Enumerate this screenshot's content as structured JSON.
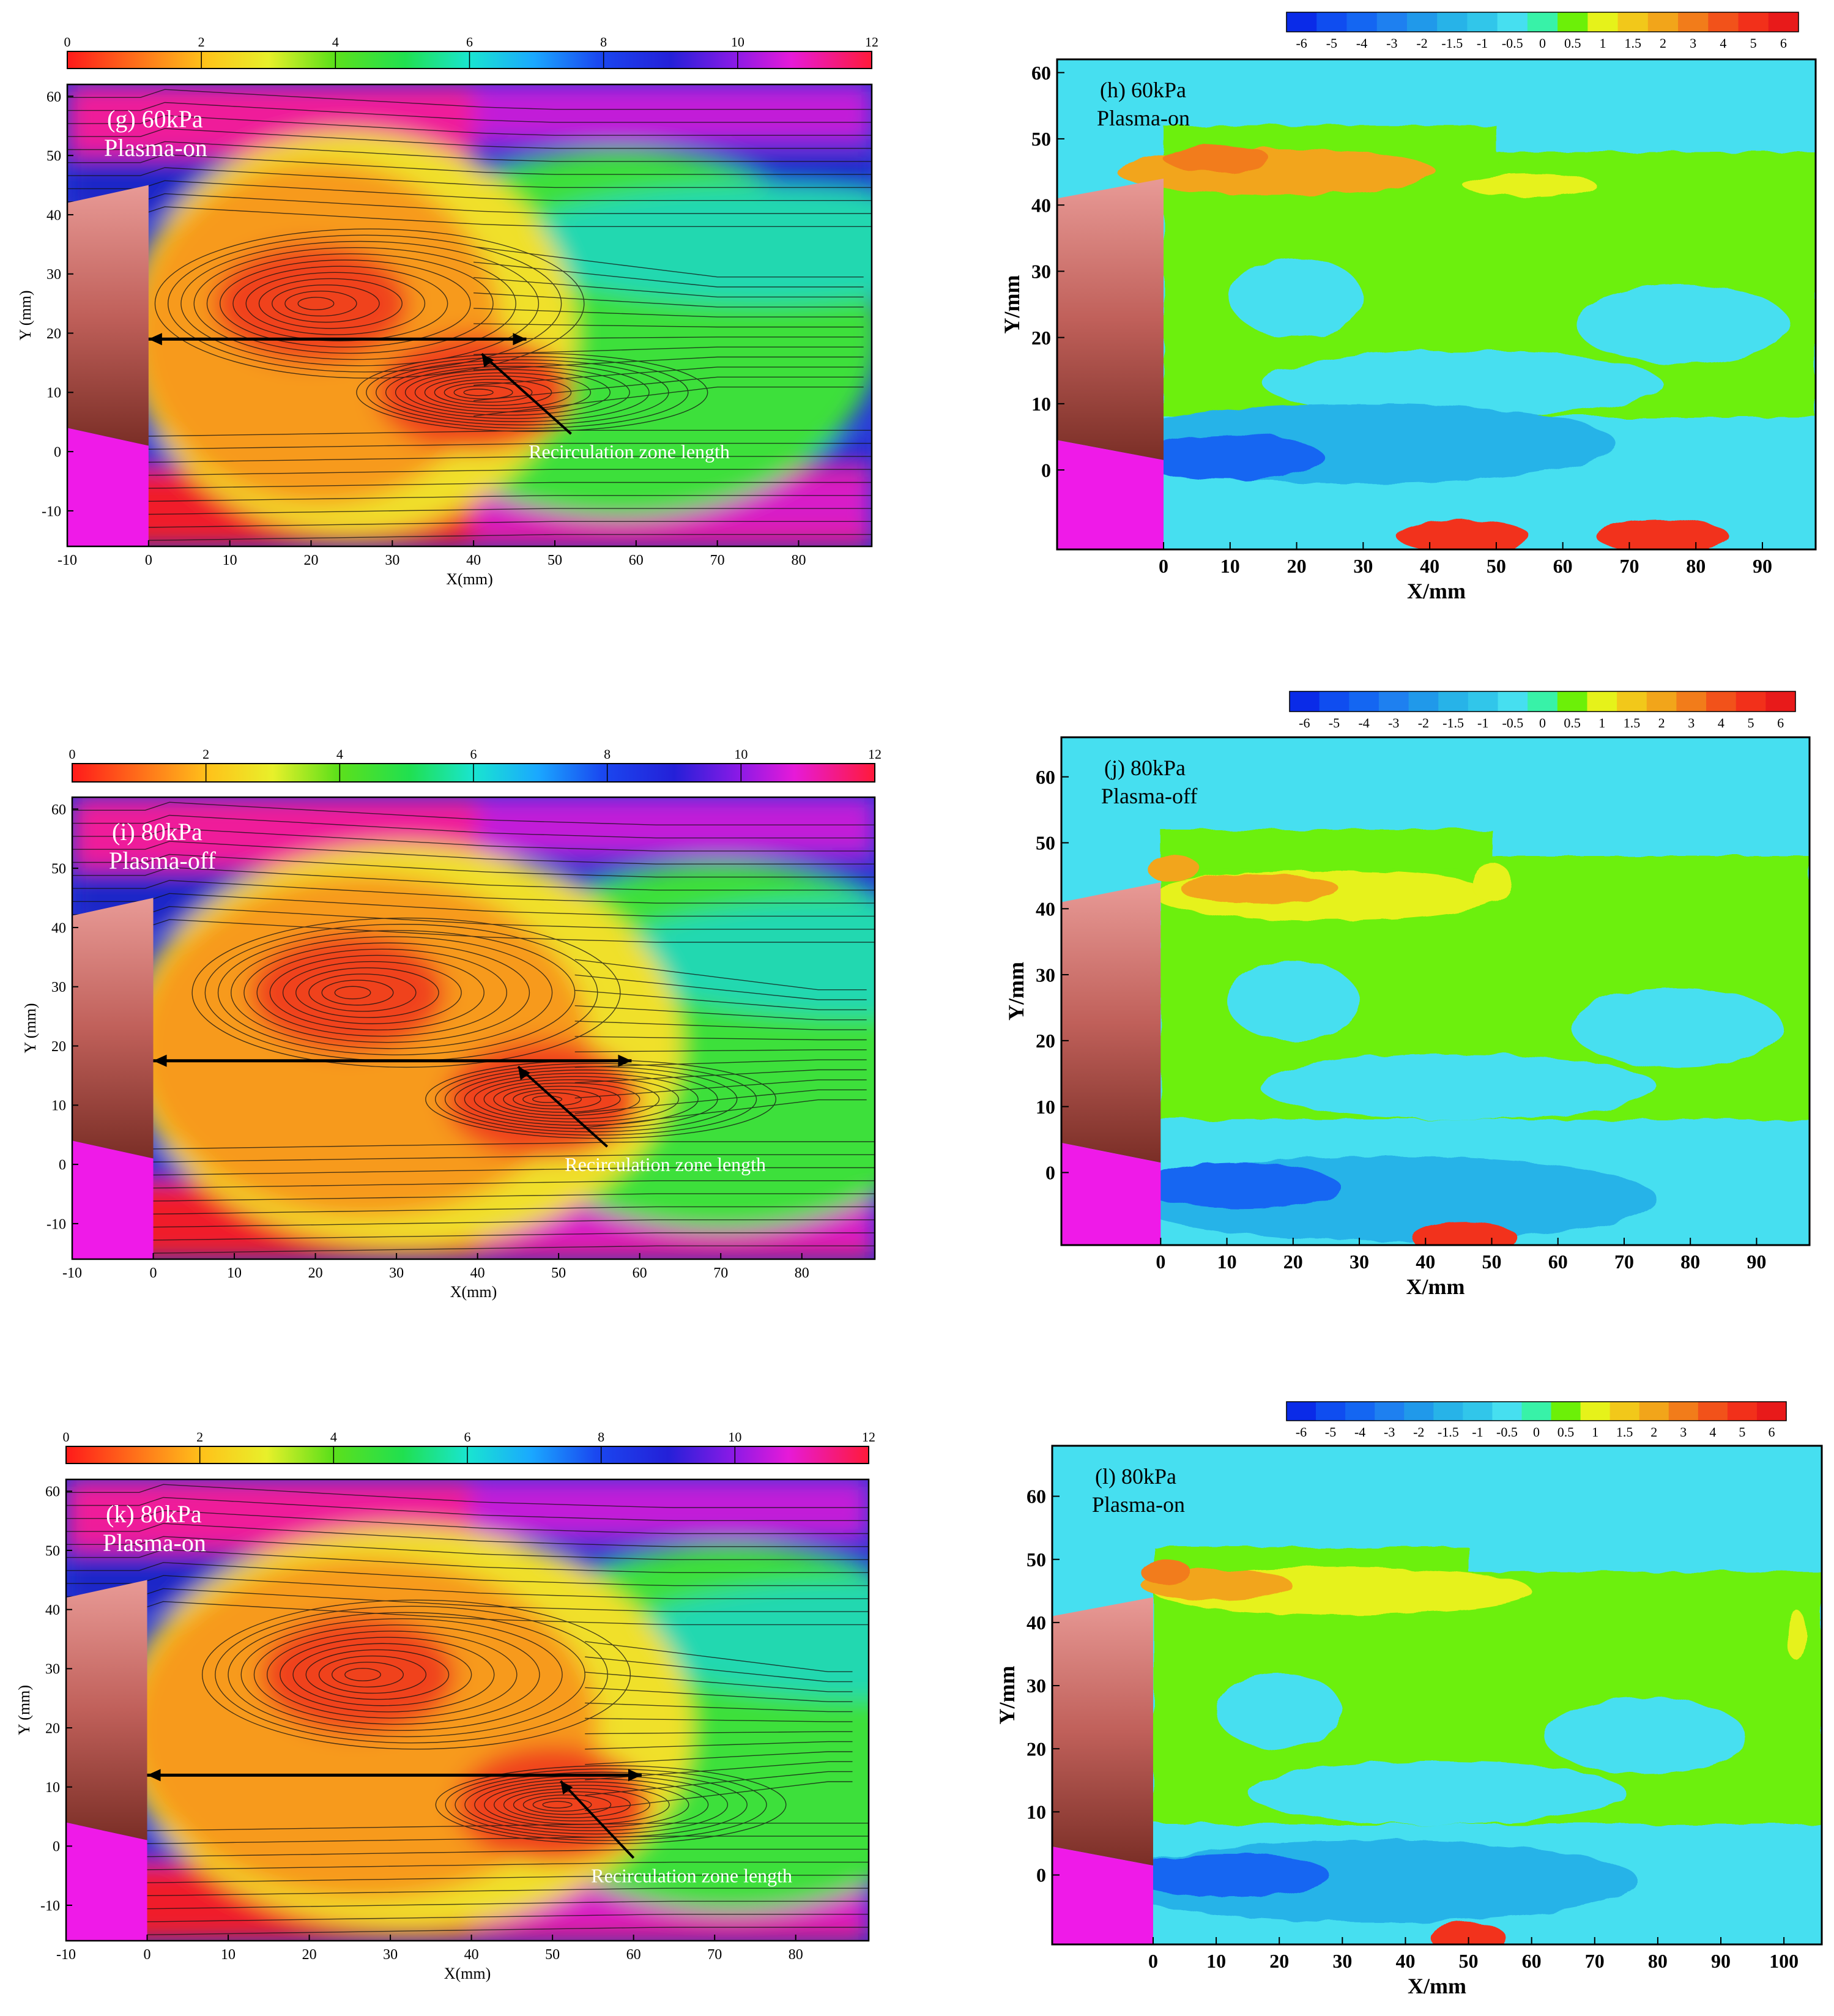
{
  "chart_data": [
    {
      "id": "g",
      "type": "heatmap",
      "variant": "velocity-streamline",
      "panel_label": "(g) 60kPa",
      "panel_sublabel": "Plasma-on",
      "xlabel": "X(mm)",
      "ylabel": "Y (mm)",
      "xlim": [
        -10,
        89
      ],
      "ylim": [
        -16,
        62
      ],
      "xticks": [
        "-10",
        "0",
        "10",
        "20",
        "30",
        "40",
        "50",
        "60",
        "70",
        "80"
      ],
      "yticks": [
        "-10",
        "0",
        "10",
        "20",
        "30",
        "40",
        "50",
        "60"
      ],
      "colorbar": {
        "ticks": [
          "0",
          "2",
          "4",
          "6",
          "8",
          "10",
          "12"
        ],
        "range": [
          0,
          12
        ],
        "placement": "top"
      },
      "arrow": {
        "x_start": 0,
        "x_end": 46.5,
        "y": 19
      },
      "annotation": {
        "text": "Recirculation zone length",
        "pointer_tip": [
          41,
          16.5
        ],
        "pointer_tail": [
          52,
          3
        ]
      },
      "vortices": [
        {
          "x": 20,
          "y": 25
        },
        {
          "x": 40,
          "y": 10
        }
      ],
      "recirculation_x": 50
    },
    {
      "id": "h",
      "type": "heatmap",
      "variant": "diverging",
      "panel_label": "(h) 60kPa",
      "panel_sublabel": "Plasma-on",
      "xlabel": "X/mm",
      "ylabel": "Y/mm",
      "xlim": [
        -16,
        98
      ],
      "ylim": [
        -12,
        62
      ],
      "xticks": [
        "0",
        "10",
        "20",
        "30",
        "40",
        "50",
        "60",
        "70",
        "80",
        "90"
      ],
      "yticks": [
        "0",
        "10",
        "20",
        "30",
        "40",
        "50",
        "60"
      ],
      "colorbar": {
        "ticks": [
          "-6",
          "-5",
          "-4",
          "-3",
          "-2",
          "-1.5",
          "-1",
          "-0.5",
          "0",
          "0.5",
          "1",
          "1.5",
          "2",
          "3",
          "4",
          "5",
          "6"
        ],
        "placement": "top-right"
      },
      "blobs": [
        {
          "x": 17,
          "y": 45,
          "rx": 24,
          "ry": 3.5,
          "level": 3
        },
        {
          "x": 8,
          "y": 47,
          "rx": 8,
          "ry": 2,
          "level": 4
        },
        {
          "x": 55,
          "y": 43,
          "rx": 10,
          "ry": 1.8,
          "level": 2
        },
        {
          "x": 30,
          "y": 4,
          "rx": 38,
          "ry": 6,
          "level": -2
        },
        {
          "x": 10,
          "y": 2,
          "rx": 14,
          "ry": 3.5,
          "level": -3
        },
        {
          "x": 45,
          "y": -10,
          "rx": 10,
          "ry": 2.5,
          "level": 5
        },
        {
          "x": 75,
          "y": -10,
          "rx": 10,
          "ry": 2.5,
          "level": 5
        }
      ]
    },
    {
      "id": "i",
      "type": "heatmap",
      "variant": "velocity-streamline",
      "panel_label": "(i) 80kPa",
      "panel_sublabel": "Plasma-off",
      "xlabel": "X(mm)",
      "ylabel": "Y (mm)",
      "xlim": [
        -10,
        89
      ],
      "ylim": [
        -16,
        62
      ],
      "xticks": [
        "-10",
        "0",
        "10",
        "20",
        "30",
        "40",
        "50",
        "60",
        "70",
        "80"
      ],
      "yticks": [
        "-10",
        "0",
        "10",
        "20",
        "30",
        "40",
        "50",
        "60"
      ],
      "colorbar": {
        "ticks": [
          "0",
          "2",
          "4",
          "6",
          "8",
          "10",
          "12"
        ],
        "range": [
          0,
          12
        ],
        "placement": "top"
      },
      "arrow": {
        "x_start": 0,
        "x_end": 59,
        "y": 17.5
      },
      "annotation": {
        "text": "Recirculation zone length",
        "pointer_tip": [
          45,
          16.5
        ],
        "pointer_tail": [
          56,
          3
        ]
      },
      "vortices": [
        {
          "x": 24,
          "y": 29
        },
        {
          "x": 48,
          "y": 11
        }
      ],
      "recirculation_x": 62
    },
    {
      "id": "j",
      "type": "heatmap",
      "variant": "diverging",
      "panel_label": "(j) 80kPa",
      "panel_sublabel": "Plasma-off",
      "xlabel": "X/mm",
      "ylabel": "Y/mm",
      "xlim": [
        -15,
        98
      ],
      "ylim": [
        -11,
        66
      ],
      "xticks": [
        "0",
        "10",
        "20",
        "30",
        "40",
        "50",
        "60",
        "70",
        "80",
        "90"
      ],
      "yticks": [
        "0",
        "10",
        "20",
        "30",
        "40",
        "50",
        "60"
      ],
      "colorbar": {
        "ticks": [
          "-6",
          "-5",
          "-4",
          "-3",
          "-2",
          "-1.5",
          "-1",
          "-0.5",
          "0",
          "0.5",
          "1",
          "1.5",
          "2",
          "3",
          "4",
          "5",
          "6"
        ],
        "placement": "top-right"
      },
      "blobs": [
        {
          "x": 25,
          "y": 42,
          "rx": 26,
          "ry": 3.8,
          "level": 2
        },
        {
          "x": 15,
          "y": 43,
          "rx": 12,
          "ry": 2.2,
          "level": 3
        },
        {
          "x": 2,
          "y": 46,
          "rx": 4,
          "ry": 2,
          "level": 3
        },
        {
          "x": 50,
          "y": 44,
          "rx": 3,
          "ry": 3,
          "level": 2
        },
        {
          "x": 35,
          "y": -4,
          "rx": 40,
          "ry": 6.5,
          "level": -2
        },
        {
          "x": 12,
          "y": -2,
          "rx": 15,
          "ry": 3.5,
          "level": -3
        },
        {
          "x": 46,
          "y": -10,
          "rx": 8,
          "ry": 2.5,
          "level": 5
        }
      ]
    },
    {
      "id": "k",
      "type": "heatmap",
      "variant": "velocity-streamline",
      "panel_label": "(k) 80kPa",
      "panel_sublabel": "Plasma-on",
      "xlabel": "X(mm)",
      "ylabel": "Y (mm)",
      "xlim": [
        -10,
        89
      ],
      "ylim": [
        -16,
        62
      ],
      "xticks": [
        "-10",
        "0",
        "10",
        "20",
        "30",
        "40",
        "50",
        "60",
        "70",
        "80"
      ],
      "yticks": [
        "-10",
        "0",
        "10",
        "20",
        "30",
        "40",
        "50",
        "60"
      ],
      "colorbar": {
        "ticks": [
          "0",
          "2",
          "4",
          "6",
          "8",
          "10",
          "12"
        ],
        "range": [
          0,
          12
        ],
        "placement": "top"
      },
      "arrow": {
        "x_start": 0,
        "x_end": 61,
        "y": 12
      },
      "annotation": {
        "text": "Recirculation zone length",
        "pointer_tip": [
          51,
          11
        ],
        "pointer_tail": [
          60,
          -2
        ]
      },
      "vortices": [
        {
          "x": 26,
          "y": 29
        },
        {
          "x": 50,
          "y": 7
        }
      ],
      "recirculation_x": 64
    },
    {
      "id": "l",
      "type": "heatmap",
      "variant": "diverging",
      "panel_label": "(l) 80kPa",
      "panel_sublabel": "Plasma-on",
      "xlabel": "X/mm",
      "ylabel": "Y/mm",
      "xlim": [
        -16,
        106
      ],
      "ylim": [
        -11,
        68
      ],
      "xticks": [
        "0",
        "10",
        "20",
        "30",
        "40",
        "50",
        "60",
        "70",
        "80",
        "90",
        "100"
      ],
      "yticks": [
        "0",
        "10",
        "20",
        "30",
        "40",
        "50",
        "60"
      ],
      "colorbar": {
        "ticks": [
          "-6",
          "-5",
          "-4",
          "-3",
          "-2",
          "-1.5",
          "-1",
          "-0.5",
          "0",
          "0.5",
          "1",
          "1.5",
          "2",
          "3",
          "4",
          "5",
          "6"
        ],
        "placement": "top-right"
      },
      "blobs": [
        {
          "x": 30,
          "y": 45,
          "rx": 30,
          "ry": 3.8,
          "level": 2
        },
        {
          "x": 10,
          "y": 46,
          "rx": 12,
          "ry": 2.5,
          "level": 3
        },
        {
          "x": 2,
          "y": 48,
          "rx": 4,
          "ry": 2,
          "level": 4
        },
        {
          "x": 102,
          "y": 38,
          "rx": 1.5,
          "ry": 4,
          "level": 2
        },
        {
          "x": 35,
          "y": -1,
          "rx": 42,
          "ry": 6.5,
          "level": -2
        },
        {
          "x": 12,
          "y": 0,
          "rx": 16,
          "ry": 3.5,
          "level": -3
        },
        {
          "x": 50,
          "y": -10,
          "rx": 6,
          "ry": 2.5,
          "level": 5
        }
      ]
    }
  ]
}
